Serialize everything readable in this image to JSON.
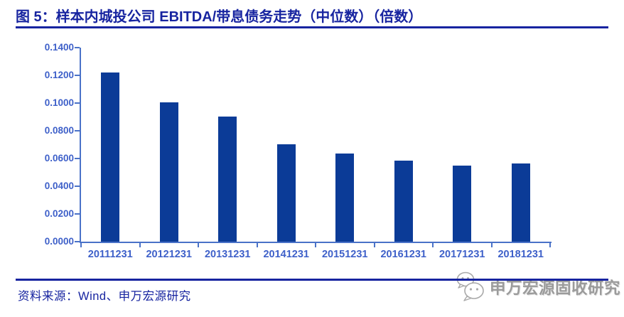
{
  "header": {
    "title": "图 5：样本内城投公司 EBITDA/带息债务走势（中位数）（倍数）"
  },
  "chart_data": {
    "type": "bar",
    "categories": [
      "20111231",
      "20121231",
      "20131231",
      "20141231",
      "20151231",
      "20161231",
      "20171231",
      "20181231"
    ],
    "values": [
      0.1221,
      0.1006,
      0.0903,
      0.0702,
      0.0637,
      0.0586,
      0.0551,
      0.0563
    ],
    "title": "",
    "xlabel": "",
    "ylabel": "",
    "ylim": [
      0,
      0.14
    ],
    "ytick_step": 0.02,
    "ytick_labels": [
      "0.0000",
      "0.0200",
      "0.0400",
      "0.0600",
      "0.0800",
      "0.1000",
      "0.1200",
      "0.1400"
    ],
    "grid": false,
    "legend": null,
    "bar_color": "#0B3B97",
    "axis_color": "#4A72C8",
    "tick_label_color": "#3E60C9"
  },
  "footer": {
    "source": "资料来源：Wind、申万宏源研究",
    "watermark": "申万宏源固收研究",
    "watermark_color": "#9B9B9B"
  },
  "colors": {
    "accent": "#1724A0"
  },
  "icons": {
    "watermark_icon": "wechat-icon"
  }
}
